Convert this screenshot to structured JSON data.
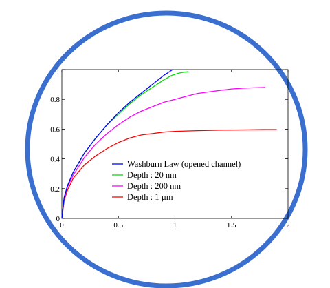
{
  "header": {
    "cropped_title_text": ""
  },
  "colors": {
    "ellipse_border": "#3a6fd0",
    "title_blue": "#2f6fdb",
    "axis": "#000000"
  },
  "chart_data": {
    "type": "line",
    "title": "",
    "xlabel": "",
    "ylabel": "",
    "xlim": [
      0,
      2
    ],
    "ylim": [
      0,
      1
    ],
    "x_ticks": [
      0,
      0.5,
      1,
      1.5,
      2
    ],
    "x_tick_labels": [
      "0",
      "0.5",
      "1",
      "1.5",
      "2"
    ],
    "y_ticks": [
      0,
      0.2,
      0.4,
      0.6,
      0.8,
      1
    ],
    "y_tick_labels": [
      "0",
      "0.2",
      "0.4",
      "0.6",
      "0.8",
      "1"
    ],
    "grid": false,
    "legend_position": "lower-right",
    "series": [
      {
        "name": "Washburn Law (opened channel)",
        "color": "#0000ff",
        "x": [
          0,
          0.02,
          0.05,
          0.1,
          0.2,
          0.3,
          0.4,
          0.5,
          0.6,
          0.7,
          0.8,
          0.9,
          0.98
        ],
        "y": [
          0,
          0.14,
          0.22,
          0.31,
          0.44,
          0.54,
          0.63,
          0.71,
          0.78,
          0.84,
          0.9,
          0.96,
          1.0
        ]
      },
      {
        "name": "Depth : 20 nm",
        "color": "#00dd00",
        "x": [
          0,
          0.02,
          0.05,
          0.1,
          0.2,
          0.3,
          0.4,
          0.5,
          0.6,
          0.7,
          0.8,
          0.9,
          0.97,
          1.03,
          1.08,
          1.12
        ],
        "y": [
          0,
          0.14,
          0.22,
          0.31,
          0.44,
          0.54,
          0.63,
          0.7,
          0.77,
          0.83,
          0.88,
          0.93,
          0.96,
          0.975,
          0.983,
          0.985
        ]
      },
      {
        "name": "Depth : 200 nm",
        "color": "#ff00ff",
        "x": [
          0,
          0.02,
          0.05,
          0.1,
          0.2,
          0.3,
          0.4,
          0.5,
          0.6,
          0.7,
          0.8,
          0.9,
          1.0,
          1.1,
          1.2,
          1.3,
          1.4,
          1.5,
          1.6,
          1.7,
          1.8
        ],
        "y": [
          0,
          0.13,
          0.21,
          0.29,
          0.41,
          0.5,
          0.57,
          0.63,
          0.68,
          0.72,
          0.75,
          0.78,
          0.8,
          0.82,
          0.84,
          0.85,
          0.86,
          0.87,
          0.875,
          0.878,
          0.88
        ]
      },
      {
        "name": "Depth : 1 µm",
        "color": "#ff0000",
        "x": [
          0,
          0.02,
          0.05,
          0.1,
          0.2,
          0.3,
          0.4,
          0.5,
          0.6,
          0.7,
          0.8,
          0.9,
          1.0,
          1.2,
          1.4,
          1.6,
          1.8,
          1.9
        ],
        "y": [
          0,
          0.12,
          0.19,
          0.27,
          0.36,
          0.42,
          0.47,
          0.51,
          0.54,
          0.56,
          0.57,
          0.58,
          0.585,
          0.59,
          0.593,
          0.595,
          0.597,
          0.597
        ]
      }
    ]
  }
}
